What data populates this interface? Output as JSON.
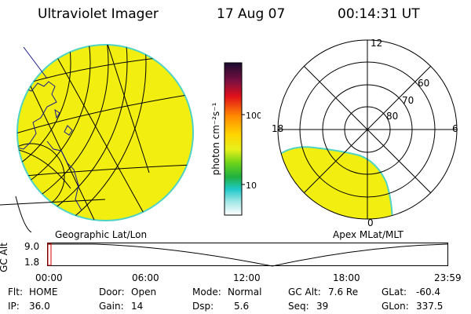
{
  "header": {
    "title": "Ultraviolet Imager",
    "date": "17 Aug 07",
    "time": "00:14:31 UT"
  },
  "colors": {
    "image_fill": "#f2ef10",
    "image_edge": "#4fd3c4",
    "polar_fill": "#f2ef10"
  },
  "geo_panel": {
    "label": "Geographic Lat/Lon"
  },
  "colorbar": {
    "unit_label": "photon cm⁻²s⁻¹",
    "ticks": [
      "100",
      "10"
    ],
    "tick_values": [
      100,
      10
    ],
    "scale": "log"
  },
  "polar_panel": {
    "label": "Apex MLat/MLT",
    "mlt_labels": {
      "top": "12",
      "left": "18",
      "right": "6",
      "bottom": "0"
    },
    "lat_labels": [
      "60",
      "70",
      "80"
    ]
  },
  "altitude_panel": {
    "ylabel": "GC Alt",
    "yticks": [
      "9.0",
      "1.8"
    ],
    "xticks": [
      "00:00",
      "06:00",
      "12:00",
      "18:00",
      "23:59"
    ]
  },
  "footer": {
    "flt_label": "Flt:",
    "flt_value": "HOME",
    "ip_label": "IP:",
    "ip_value": "36.0",
    "door_label": "Door:",
    "door_value": "Open",
    "gain_label": "Gain:",
    "gain_value": "14",
    "mode_label": "Mode:",
    "mode_value": "Normal",
    "dsp_label": "Dsp:",
    "dsp_value": "5.6",
    "gcalt_label": "GC Alt:",
    "gcalt_value": "7.6 Re",
    "seq_label": "Seq:",
    "seq_value": "39",
    "glat_label": "GLat:",
    "glat_value": "-60.4",
    "glon_label": "GLon:",
    "glon_value": "337.5"
  }
}
